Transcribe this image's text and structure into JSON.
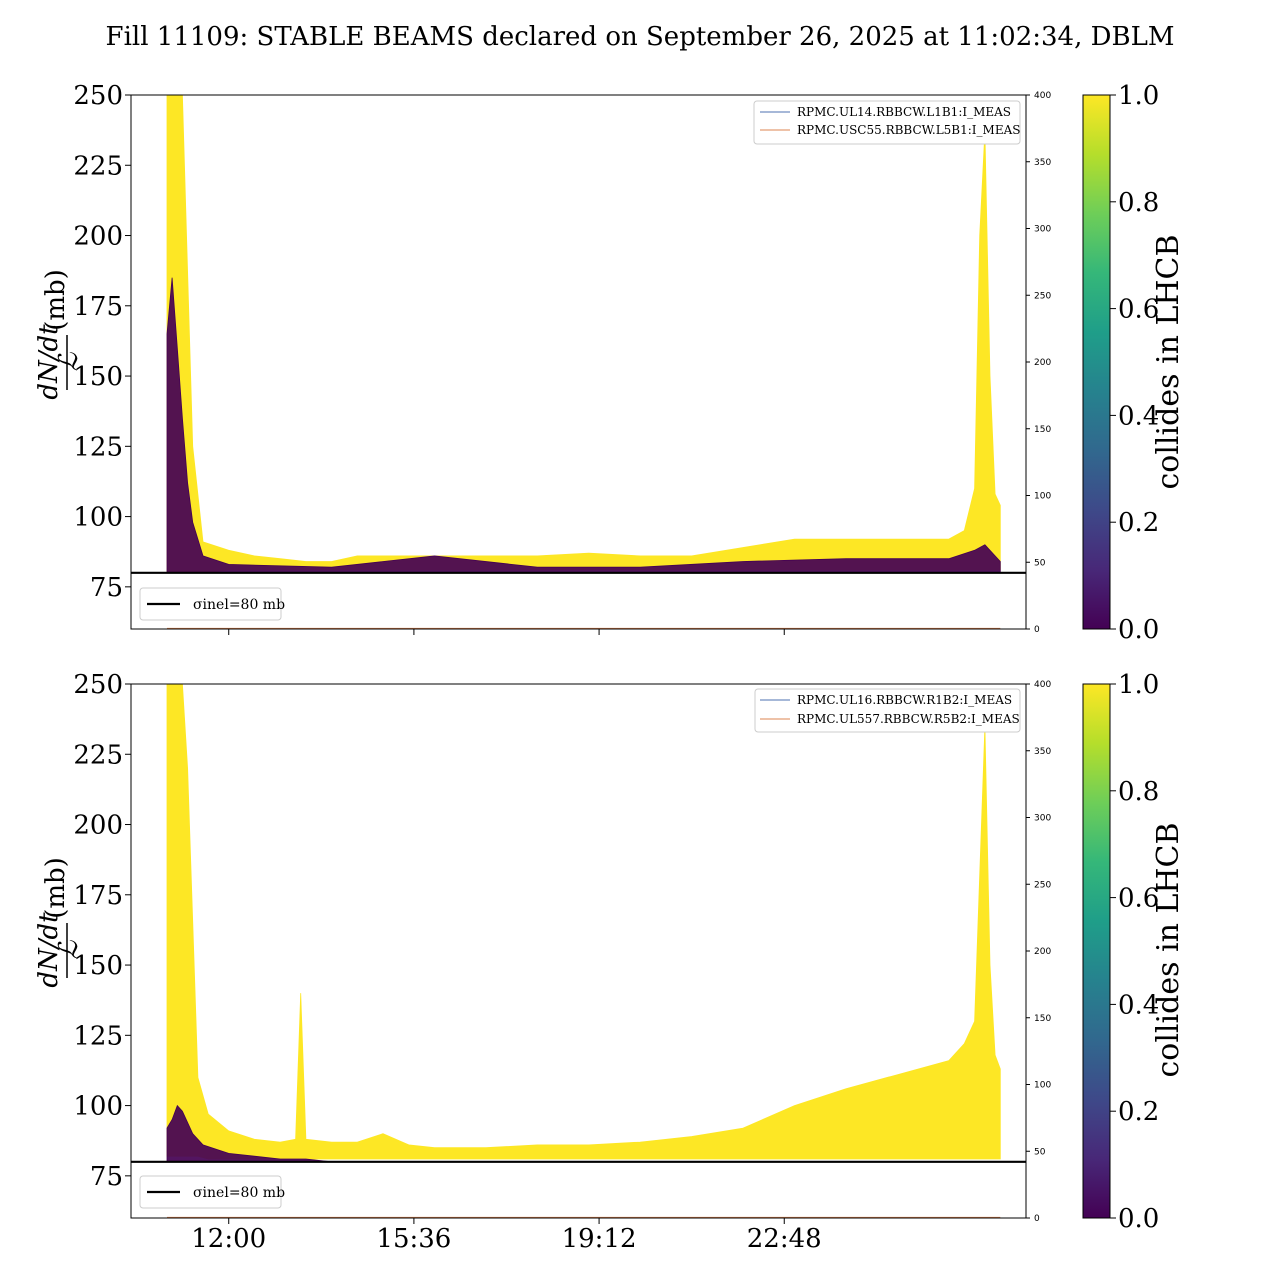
{
  "title": "Fill 11109: STABLE BEAMS declared on September 26, 2025 at 11:02:34, DBLM",
  "colors": {
    "collides": "#fde725",
    "non_colliding": "#440154",
    "blm_b1": "#4c72b0",
    "blm_b2": "#dd8452",
    "sigma_line": "#000000",
    "viridis": [
      "#440154",
      "#482878",
      "#3e4989",
      "#31688e",
      "#26828e",
      "#1f9e89",
      "#35b779",
      "#6ece58",
      "#b5de2b",
      "#fde725"
    ]
  },
  "colorbar": {
    "label": "collides in LHCB",
    "ticks": [
      "0.0",
      "0.2",
      "0.4",
      "0.6",
      "0.8",
      "1.0"
    ]
  },
  "chart_data": [
    {
      "type": "line",
      "panel": "top",
      "ylabel_fraction_num": "dN/dt",
      "ylabel_fraction_den": "ℒ",
      "ylabel_unit": "(mb)",
      "ylim": [
        60,
        250
      ],
      "yticks": [
        75,
        100,
        125,
        150,
        175,
        200,
        225,
        250
      ],
      "y2lim": [
        0,
        400
      ],
      "y2ticks": [
        0,
        50,
        100,
        150,
        200,
        250,
        300,
        350,
        400
      ],
      "xlim_hours": [
        10.1,
        27.5
      ],
      "xticks_hours": [
        12.0,
        15.6,
        19.2,
        22.8
      ],
      "xtick_labels": [],
      "sigma_inel": {
        "value": 80,
        "label": "σinel=80 mb"
      },
      "legend": [
        "RPMC.UL14.RBBCW.L1B1:I_MEAS",
        "RPMC.USC55.RBBCW.L5B1:I_MEAS"
      ],
      "series": [
        {
          "role": "colliding",
          "x": [
            10.8,
            10.9,
            11.0,
            11.1,
            11.3,
            11.5,
            12.0,
            12.5,
            13.0,
            13.5,
            14.0,
            14.5,
            15.0,
            15.5,
            16.0,
            17.0,
            18.0,
            19.0,
            20.0,
            21.0,
            22.0,
            23.0,
            24.0,
            25.0,
            26.0,
            26.3,
            26.5,
            26.6,
            26.7,
            26.8,
            26.9,
            27.0
          ],
          "y_max": [
            250,
            250,
            250,
            250,
            125,
            91,
            88,
            86,
            85,
            84,
            84,
            86,
            86,
            86,
            86,
            86,
            86,
            87,
            86,
            86,
            89,
            92,
            92,
            92,
            92,
            95,
            110,
            200,
            237,
            150,
            108,
            104
          ],
          "y_min": [
            80,
            80,
            80,
            80,
            80,
            80,
            81,
            81,
            81,
            81,
            81,
            81,
            81,
            81,
            81,
            81,
            81,
            81,
            81,
            81,
            81,
            81,
            81,
            81,
            81,
            81,
            81,
            81,
            81,
            81,
            81,
            81
          ]
        },
        {
          "role": "non-colliding",
          "x": [
            10.8,
            10.9,
            11.0,
            11.1,
            11.2,
            11.3,
            11.5,
            12.0,
            14.0,
            16.0,
            18.0,
            20.0,
            22.0,
            24.0,
            26.0,
            26.5,
            26.7,
            26.9,
            27.0
          ],
          "y_max": [
            165,
            185,
            160,
            135,
            112,
            98,
            86,
            83,
            82,
            86,
            82,
            82,
            84,
            85,
            85,
            88,
            90,
            86,
            84
          ],
          "y_min": [
            80,
            80,
            80,
            80,
            80,
            80,
            80,
            80,
            80,
            80,
            80,
            80,
            80,
            80,
            80,
            80,
            80,
            80,
            80
          ]
        }
      ]
    },
    {
      "type": "line",
      "panel": "bottom",
      "ylabel_fraction_num": "dN/dt",
      "ylabel_fraction_den": "ℒ",
      "ylabel_unit": "(mb)",
      "ylim": [
        60,
        250
      ],
      "yticks": [
        75,
        100,
        125,
        150,
        175,
        200,
        225,
        250
      ],
      "y2lim": [
        0,
        400
      ],
      "y2ticks": [
        0,
        50,
        100,
        150,
        200,
        250,
        300,
        350,
        400
      ],
      "xlim_hours": [
        10.1,
        27.5
      ],
      "xticks_hours": [
        12.0,
        15.6,
        19.2,
        22.8
      ],
      "xtick_labels": [
        "12:00",
        "15:36",
        "19:12",
        "22:48"
      ],
      "sigma_inel": {
        "value": 80,
        "label": "σinel=80 mb"
      },
      "legend": [
        "RPMC.UL16.RBBCW.R1B2:I_MEAS",
        "RPMC.UL557.RBBCW.R5B2:I_MEAS"
      ],
      "series": [
        {
          "role": "colliding",
          "x": [
            10.8,
            10.9,
            11.0,
            11.1,
            11.2,
            11.4,
            11.6,
            12.0,
            12.5,
            13.0,
            13.3,
            13.4,
            13.5,
            14.0,
            14.5,
            15.0,
            15.5,
            16.0,
            17.0,
            18.0,
            19.0,
            20.0,
            21.0,
            22.0,
            23.0,
            24.0,
            25.0,
            26.0,
            26.3,
            26.5,
            26.7,
            26.8,
            26.9,
            27.0
          ],
          "y_max": [
            250,
            250,
            250,
            250,
            220,
            110,
            97,
            91,
            88,
            87,
            88,
            140,
            88,
            87,
            87,
            90,
            86,
            85,
            85,
            86,
            86,
            87,
            89,
            92,
            100,
            106,
            111,
            116,
            122,
            130,
            235,
            150,
            118,
            113
          ],
          "y_min": [
            82,
            82,
            82,
            82,
            82,
            82,
            81,
            81,
            81,
            81,
            81,
            81,
            81,
            81,
            81,
            81,
            81,
            81,
            81,
            81,
            81,
            81,
            81,
            81,
            81,
            81,
            81,
            81,
            81,
            81,
            81,
            81,
            81,
            81
          ]
        },
        {
          "role": "non-colliding",
          "x": [
            10.8,
            10.9,
            11.0,
            11.1,
            11.3,
            11.5,
            12.0,
            12.5,
            13.0,
            13.5,
            14.0
          ],
          "y_max": [
            92,
            95,
            100,
            98,
            90,
            86,
            83,
            82,
            81,
            81,
            80
          ],
          "y_min": [
            80,
            80,
            80,
            80,
            80,
            80,
            80,
            80,
            80,
            80,
            80
          ]
        }
      ]
    }
  ]
}
